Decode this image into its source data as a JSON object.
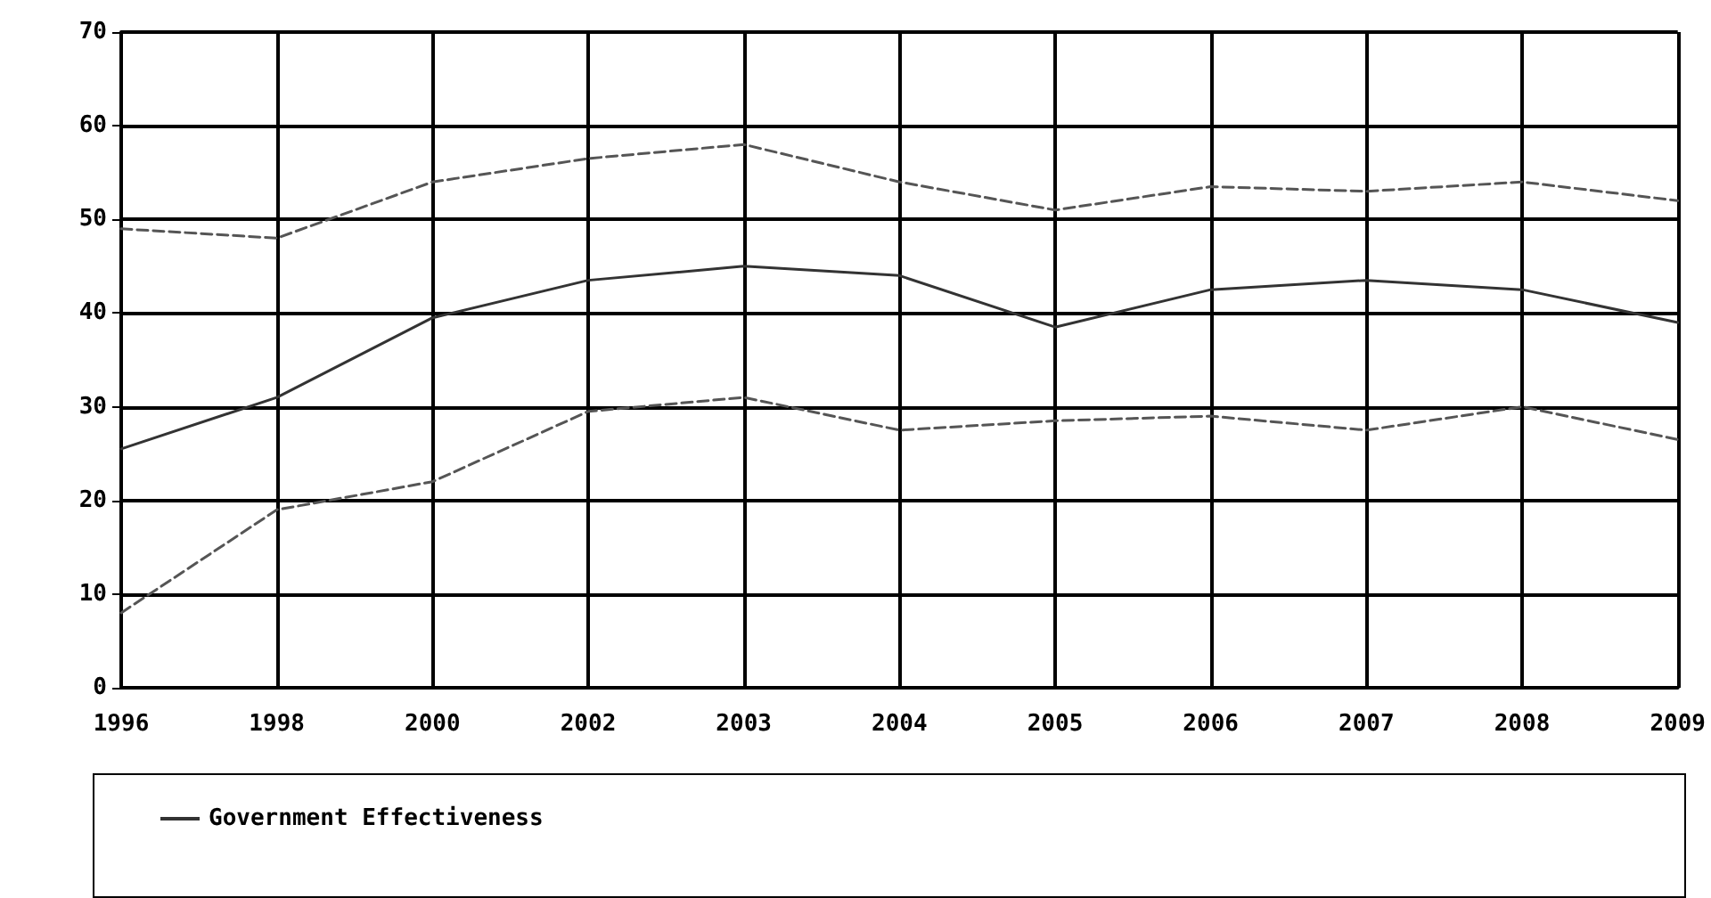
{
  "chart_data": {
    "type": "line",
    "categories": [
      "1996",
      "1998",
      "2000",
      "2002",
      "2003",
      "2004",
      "2005",
      "2006",
      "2007",
      "2008",
      "2009"
    ],
    "series": [
      {
        "color": "#555555",
        "line_style": "dashed",
        "values": [
          49,
          48,
          54,
          56.5,
          58,
          54,
          51,
          53.5,
          53,
          54,
          52
        ]
      },
      {
        "name": "Government Effectiveness",
        "color": "#333333",
        "line_style": "solid",
        "values": [
          25.5,
          31,
          39.5,
          43.5,
          45,
          44,
          38.5,
          42.5,
          43.5,
          42.5,
          39
        ]
      },
      {
        "color": "#555555",
        "line_style": "dashed",
        "values": [
          8,
          19,
          22,
          29.5,
          31,
          27.5,
          28.5,
          29,
          27.5,
          30,
          26.5
        ]
      }
    ],
    "ylim": [
      0,
      70
    ],
    "yticks": [
      0,
      10,
      20,
      30,
      40,
      50,
      60,
      70
    ],
    "grid": true,
    "legend": "bottom",
    "marker": "none"
  }
}
